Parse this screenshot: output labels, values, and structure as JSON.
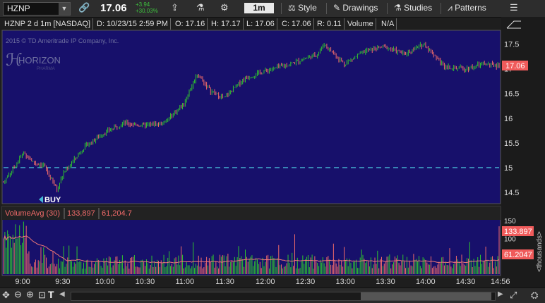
{
  "toolbar": {
    "symbol": "HZNP",
    "last_price": "17.06",
    "change_net": "+3.94",
    "change_pct": "+30.03%",
    "timeframe": "1m",
    "style_label": "Style",
    "drawings_label": "Drawings",
    "studies_label": "Studies",
    "patterns_label": "Patterns"
  },
  "info_bar": {
    "description": "HZNP 2 d 1m [NASDAQ]",
    "date": "D: 10/23/15 2:59 PM",
    "open": "O: 17.16",
    "high": "H: 17.17",
    "low": "L: 17.06",
    "close": "C: 17.06",
    "range": "R: 0.11",
    "volume_label": "Volume",
    "volume_value": "N/A"
  },
  "watermark": {
    "copyright": "2015 © TD Ameritrade IP Company, Inc.",
    "logo_text": "HORIZON",
    "logo_sub": "PHARMA"
  },
  "price_axis": {
    "ticks": [
      "17.5",
      "17",
      "16.5",
      "16",
      "15.5",
      "15",
      "14.5"
    ],
    "last_label": "17.06"
  },
  "buy_label": "BUY",
  "volume_pane": {
    "study_name": "VolumeAvg (30)",
    "volume_value": "133,897",
    "avg_value": "61,204.7",
    "axis_ticks": [
      "150",
      "100",
      "50"
    ],
    "volume_label": "133.897",
    "avg_label": "61.2047",
    "units": "<thousands>"
  },
  "time_axis": [
    "9:00",
    "9:30",
    "10:00",
    "10:30",
    "11:00",
    "11:30",
    "12:00",
    "12:30",
    "13:00",
    "13:30",
    "14:00",
    "14:30",
    "14:56"
  ],
  "colors": {
    "chart_bg": "#17106b",
    "up": "#2fc42f",
    "down": "#f06a6a",
    "avg_line": "#f07878",
    "ref_line": "#46b9d6",
    "price_label_bg": "#f05b5b"
  },
  "chart_data": {
    "type": "line",
    "title": "HZNP 2 d 1m [NASDAQ]",
    "x": [
      "8:45",
      "9:00",
      "9:08",
      "9:15",
      "9:25",
      "9:30",
      "9:45",
      "10:00",
      "10:15",
      "10:30",
      "10:45",
      "11:00",
      "11:10",
      "11:20",
      "11:30",
      "11:45",
      "12:00",
      "12:20",
      "12:40",
      "12:45",
      "13:00",
      "13:15",
      "13:30",
      "13:45",
      "14:00",
      "14:15",
      "14:30",
      "14:45",
      "14:56"
    ],
    "series": [
      {
        "values": [
          14.7,
          15.3,
          15.1,
          15.05,
          14.55,
          14.9,
          15.4,
          15.7,
          15.9,
          15.85,
          15.9,
          16.3,
          16.9,
          16.55,
          16.4,
          16.8,
          16.95,
          17.1,
          17.3,
          17.5,
          17.1,
          17.35,
          17.45,
          17.3,
          17.5,
          17.05,
          17.0,
          17.1,
          17.06
        ]
      }
    ],
    "ylim": [
      14.3,
      17.75
    ],
    "reference_line": 15,
    "volume": {
      "units": "thousands",
      "avg_last": 61.2047,
      "last": 133.897,
      "ylim": [
        0,
        150
      ]
    }
  }
}
